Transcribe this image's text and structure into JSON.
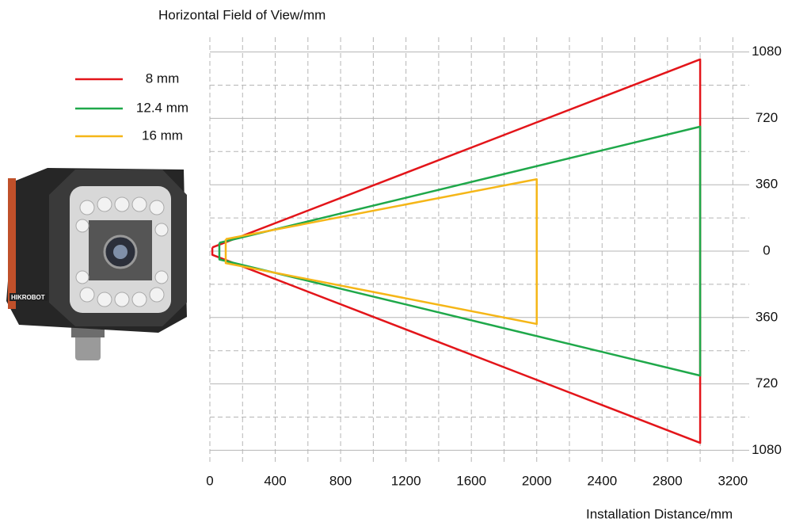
{
  "chart_data": {
    "type": "line",
    "y_axis_title": "Horizontal Field of View/mm",
    "x_axis_title": "Installation Distance/mm",
    "xlim": [
      0,
      3300
    ],
    "xticks": [
      0,
      400,
      800,
      1200,
      1600,
      2000,
      2400,
      2800,
      3200
    ],
    "ylim": [
      -1160,
      1160
    ],
    "yticks": [
      {
        "value": 1080,
        "label": "1080"
      },
      {
        "value": 720,
        "label": "720"
      },
      {
        "value": 360,
        "label": "360"
      },
      0,
      {
        "value": -360,
        "label": "360"
      },
      {
        "value": -720,
        "label": "720"
      },
      {
        "value": -1080,
        "label": "1080"
      }
    ],
    "grid": true,
    "legend": "upper left",
    "series": [
      {
        "name": "8 mm",
        "color": "#e3151a",
        "x": [
          15,
          3000,
          3000,
          15,
          15
        ],
        "values": [
          20,
          1040,
          -1040,
          -20,
          20
        ]
      },
      {
        "name": "12.4 mm",
        "color": "#1fa84a",
        "x": [
          58,
          3000,
          3000,
          58,
          58
        ],
        "values": [
          45,
          675,
          -675,
          -45,
          45
        ]
      },
      {
        "name": "16 mm",
        "color": "#f5b617",
        "x": [
          97,
          2000,
          2000,
          97,
          97
        ],
        "values": [
          65,
          390,
          -395,
          -65,
          65
        ]
      }
    ]
  }
}
